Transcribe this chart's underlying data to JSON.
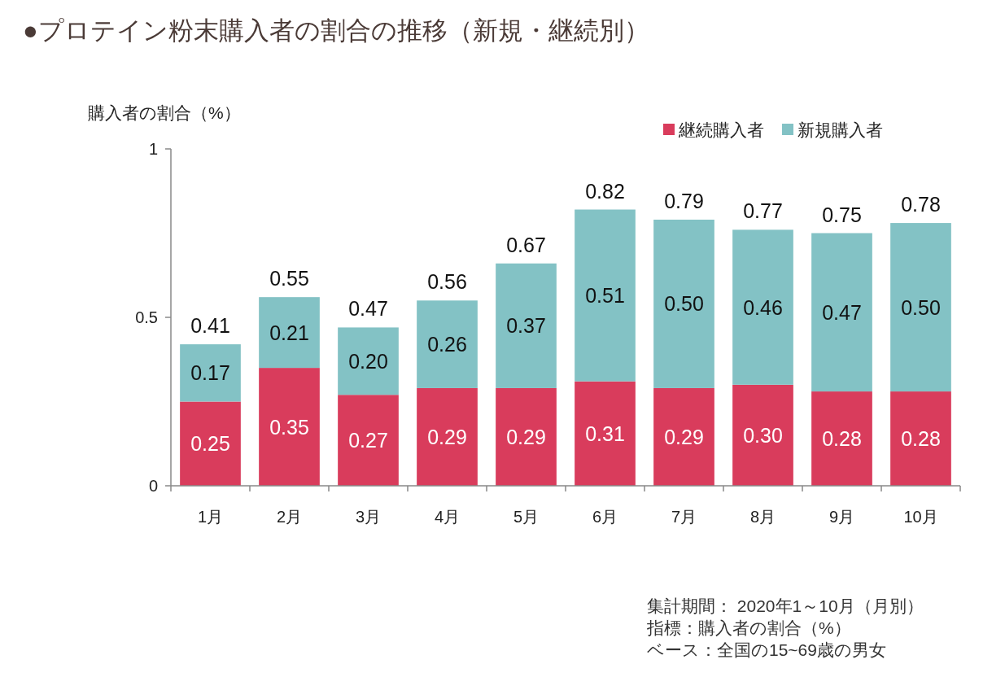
{
  "chart_data": {
    "type": "bar",
    "title": "●プロテイン粉末購入者の割合の推移（新規・継続別）",
    "ylabel": "購入者の割合（%）",
    "categories": [
      "1月",
      "2月",
      "3月",
      "4月",
      "5月",
      "6月",
      "7月",
      "8月",
      "9月",
      "10月"
    ],
    "stacked": true,
    "ylim": [
      0,
      1
    ],
    "yticks": [
      0,
      0.5,
      1
    ],
    "legend": "top right",
    "series": [
      {
        "name": "継続購入者",
        "color": "#d93c5c",
        "values": [
          0.25,
          0.35,
          0.27,
          0.29,
          0.29,
          0.31,
          0.29,
          0.3,
          0.28,
          0.28
        ],
        "value_labels": [
          "0.25",
          "0.35",
          "0.27",
          "0.29",
          "0.29",
          "0.31",
          "0.29",
          "0.30",
          "0.28",
          "0.28"
        ]
      },
      {
        "name": "新規購入者",
        "color": "#83c2c5",
        "values": [
          0.17,
          0.21,
          0.2,
          0.26,
          0.37,
          0.51,
          0.5,
          0.46,
          0.47,
          0.5
        ],
        "value_labels": [
          "0.17",
          "0.21",
          "0.20",
          "0.26",
          "0.37",
          "0.51",
          "0.50",
          "0.46",
          "0.47",
          "0.50"
        ]
      }
    ],
    "totals": [
      "0.41",
      "0.55",
      "0.47",
      "0.56",
      "0.67",
      "0.82",
      "0.79",
      "0.77",
      "0.75",
      "0.78"
    ],
    "annotations": [
      "集計期間： 2020年1～10月（月別）",
      "指標：購入者の割合（%）",
      "ベース：全国の15~69歳の男女"
    ]
  }
}
